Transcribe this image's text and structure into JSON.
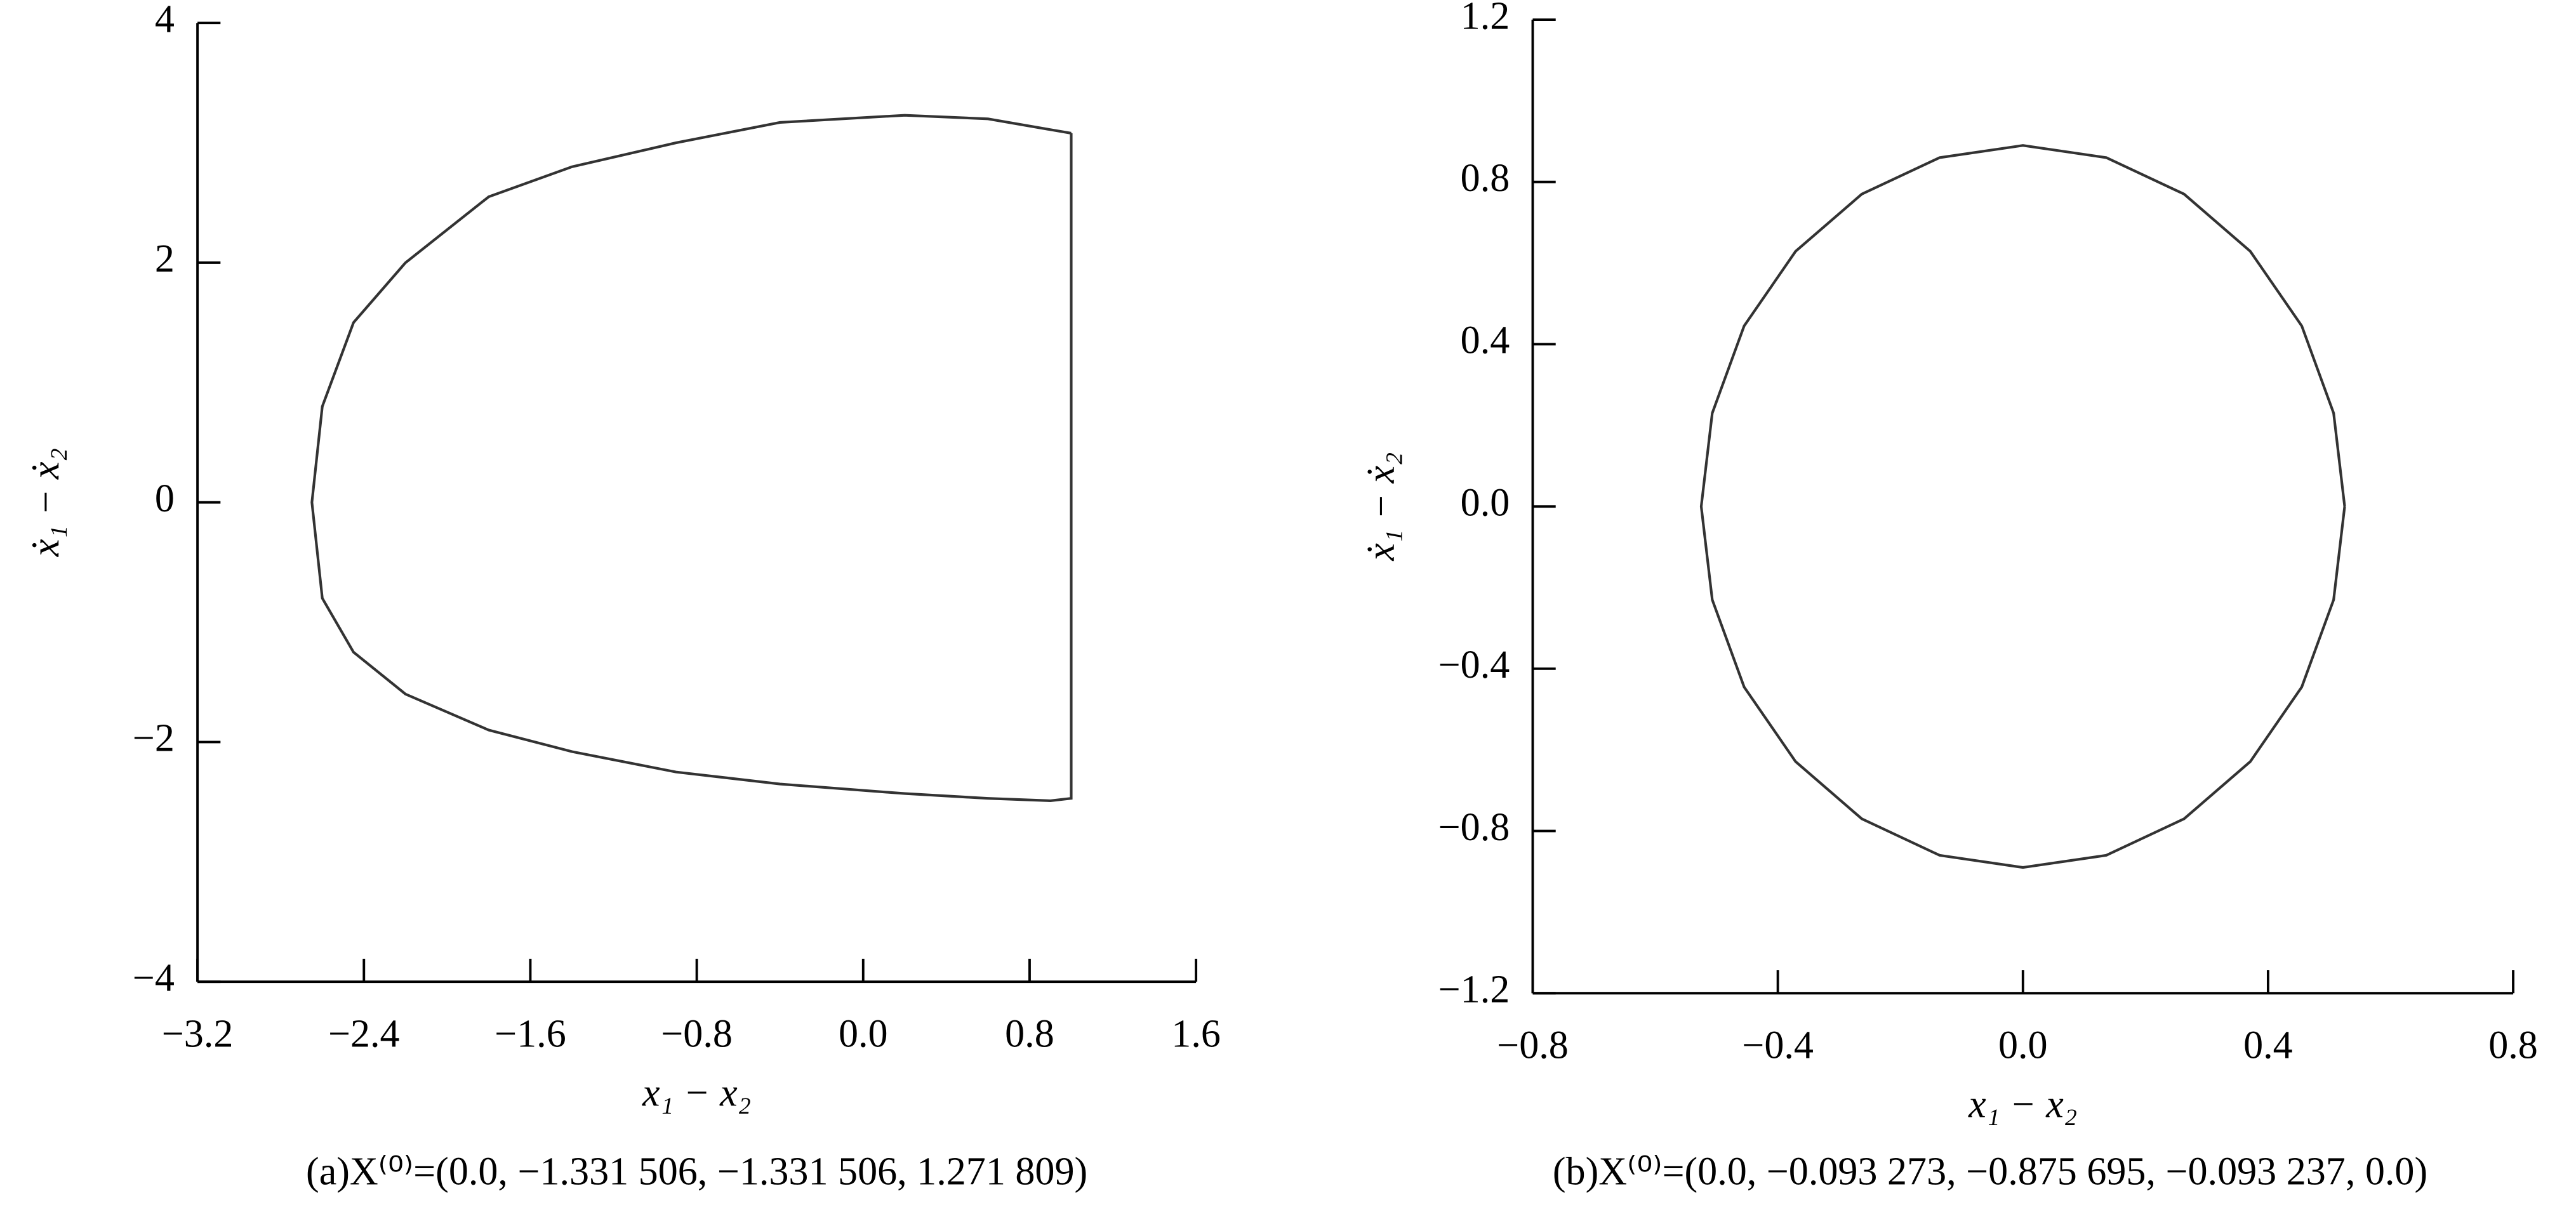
{
  "chart_data": [
    {
      "type": "line",
      "caption": "(a)X⁽⁰⁾=(0.0, −1.331 506, −1.331 506, 1.271 809)",
      "x_label": "x₁ − x₂",
      "y_label": "ẋ₁ − ẋ₂",
      "xlim": [
        -3.2,
        1.6
      ],
      "ylim": [
        -4,
        4
      ],
      "xticks": [
        {
          "value": -3.2,
          "label": "−3.2"
        },
        {
          "value": -2.4,
          "label": "−2.4"
        },
        {
          "value": -1.6,
          "label": "−1.6"
        },
        {
          "value": -0.8,
          "label": "−0.8"
        },
        {
          "value": 0,
          "label": "0.0"
        },
        0.8,
        1.6
      ],
      "yticks": [
        {
          "value": -4,
          "label": "−4"
        },
        {
          "value": -2,
          "label": "−2"
        },
        0,
        2,
        4
      ],
      "grid": false,
      "series": [
        {
          "color": "#333333",
          "x": [
            1.0,
            0.6,
            0.2,
            -0.4,
            -0.9,
            -1.4,
            -1.8,
            -2.2,
            -2.45,
            -2.6,
            -2.65,
            -2.6,
            -2.45,
            -2.2,
            -1.8,
            -1.4,
            -0.9,
            -0.4,
            0.2,
            0.6,
            0.9,
            1.0,
            1.0
          ],
          "values": [
            3.08,
            3.2,
            3.23,
            3.17,
            3.0,
            2.8,
            2.55,
            2.0,
            1.5,
            0.8,
            0.0,
            -0.8,
            -1.25,
            -1.6,
            -1.9,
            -2.08,
            -2.25,
            -2.35,
            -2.43,
            -2.47,
            -2.49,
            -2.47,
            3.08
          ]
        }
      ]
    },
    {
      "type": "line",
      "caption": "(b)X⁽⁰⁾=(0.0, −0.093 273, −0.875 695, −0.093 237, 0.0)",
      "x_label": "x₁ − x₂",
      "y_label": "ẋ₁ − ẋ₂",
      "xlim": [
        -0.8,
        0.8
      ],
      "ylim": [
        -1.2,
        1.2
      ],
      "xticks": [
        {
          "value": -0.8,
          "label": "−0.8"
        },
        {
          "value": -0.4,
          "label": "−0.4"
        },
        {
          "value": 0,
          "label": "0.0"
        },
        0.4,
        0.8
      ],
      "yticks": [
        {
          "value": -1.2,
          "label": "−1.2"
        },
        {
          "value": -0.8,
          "label": "−0.8"
        },
        {
          "value": -0.4,
          "label": "−0.4"
        },
        {
          "value": 0,
          "label": "0.0"
        },
        0.4,
        0.8,
        1.2
      ],
      "grid": false,
      "series": [
        {
          "color": "#333333",
          "x": [
            0.525,
            0.507,
            0.455,
            0.371,
            0.263,
            0.136,
            0,
            -0.136,
            -0.263,
            -0.371,
            -0.455,
            -0.507,
            -0.525,
            -0.507,
            -0.455,
            -0.371,
            -0.263,
            -0.136,
            0,
            0.136,
            0.263,
            0.371,
            0.455,
            0.507,
            0.525
          ],
          "values": [
            0,
            0.23,
            0.445,
            0.629,
            0.77,
            0.86,
            0.89,
            0.86,
            0.77,
            0.629,
            0.445,
            0.23,
            0,
            -0.23,
            -0.445,
            -0.629,
            -0.77,
            -0.86,
            -0.89,
            -0.86,
            -0.77,
            -0.629,
            -0.445,
            -0.23,
            0
          ]
        }
      ]
    }
  ]
}
